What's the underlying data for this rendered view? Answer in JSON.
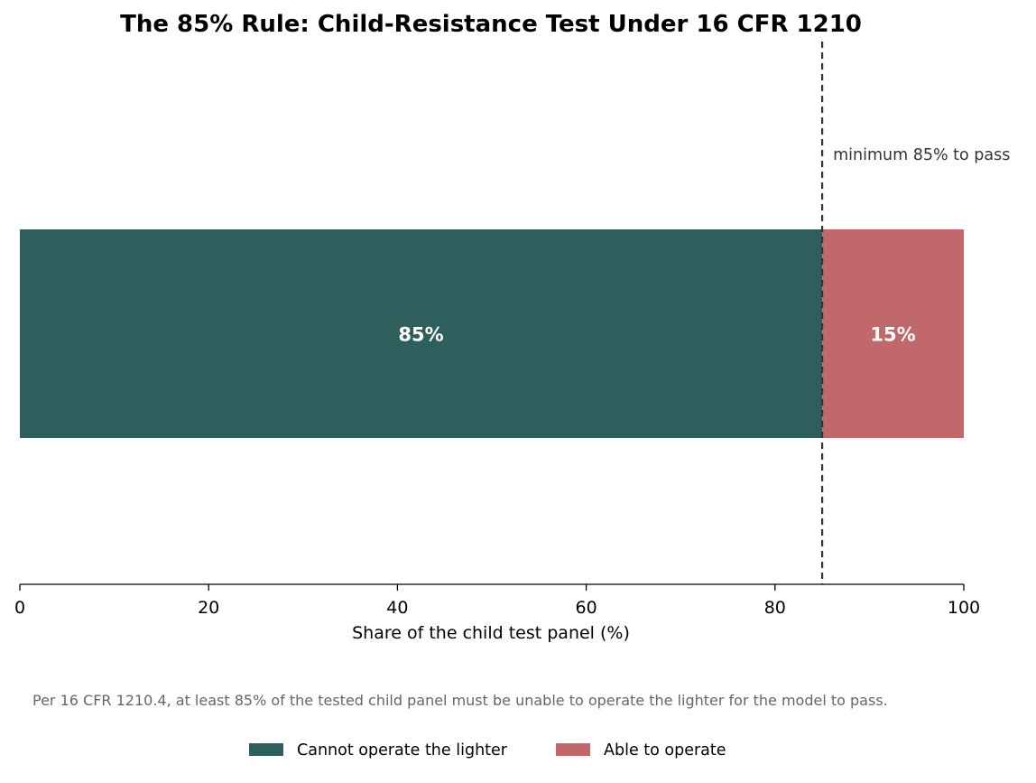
{
  "chart_data": {
    "type": "bar",
    "orientation": "horizontal",
    "stacked": true,
    "title": "The 85% Rule: Child-Resistance Test Under 16 CFR 1210",
    "xlabel": "Share of the child test panel (%)",
    "ylabel": "",
    "xlim": [
      0,
      100
    ],
    "xticks": [
      0,
      20,
      40,
      60,
      80,
      100
    ],
    "categories": [
      ""
    ],
    "series": [
      {
        "name": "Cannot operate the lighter",
        "values": [
          85
        ],
        "label": "85%",
        "color": "#2f5f5c"
      },
      {
        "name": "Able to operate",
        "values": [
          15
        ],
        "label": "15%",
        "color": "#c0686a"
      }
    ],
    "reference_line": {
      "x": 85,
      "style": "dashed",
      "color": "#333333",
      "label": "minimum 85% to pass"
    },
    "footnote": "Per 16 CFR 1210.4, at least 85% of the tested child panel must be unable to operate the lighter for the model to pass.",
    "legend_position": "bottom-center",
    "grid": false
  }
}
